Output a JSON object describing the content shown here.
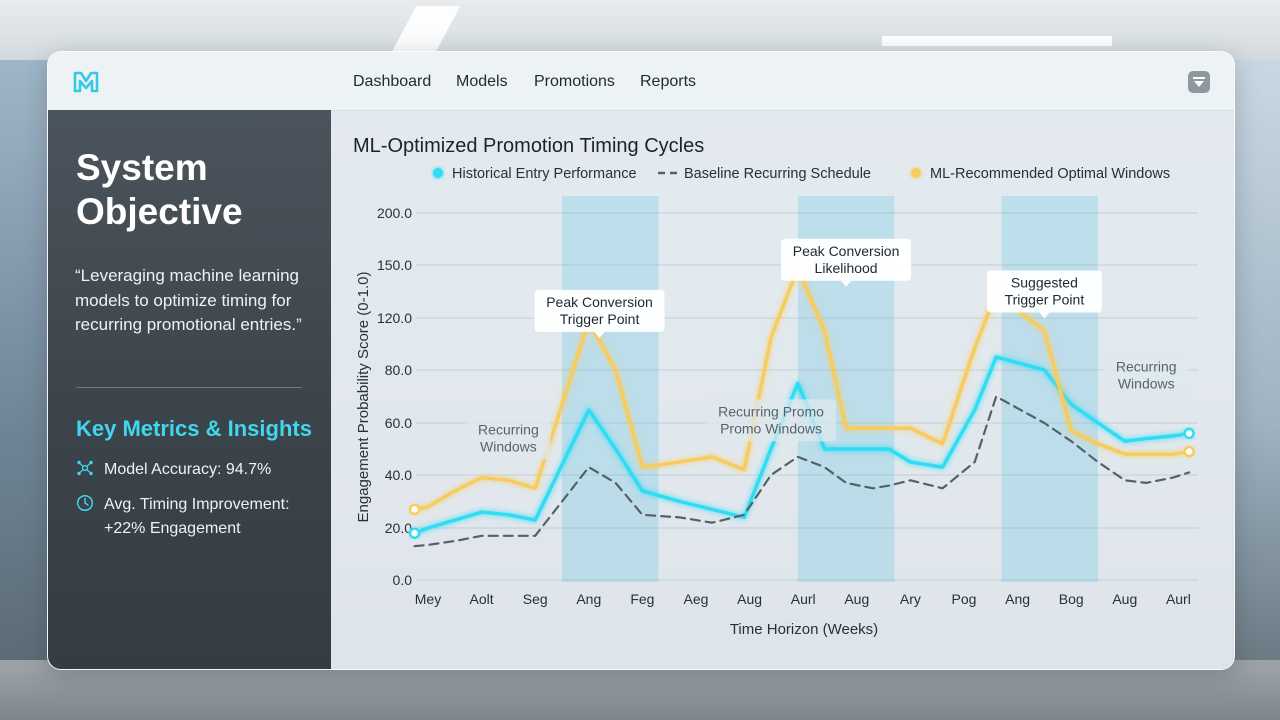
{
  "nav": {
    "items": [
      "Dashboard",
      "Models",
      "Promotions",
      "Reports"
    ]
  },
  "sidebar": {
    "title": "System Objective",
    "quote": "“Leveraging machine learning models to optimize timing for recurring promotional entries.”",
    "metrics_title": "Key Metrics & Insights",
    "metrics": [
      {
        "icon": "network-icon",
        "text": "Model Accuracy: 94.7%"
      },
      {
        "icon": "clock-icon",
        "text": "Avg. Timing Improvement: +22% Engagement"
      }
    ]
  },
  "colors": {
    "accent": "#3fd6ee",
    "historical": "#2fdcf3",
    "baseline": "#55606a",
    "ml": "#f7cc5e",
    "band": "#9fd3e8"
  },
  "chart_data": {
    "type": "line",
    "title": "ML-Optimized Promotion Timing Cycles",
    "xlabel": "Time Horizon (Weeks)",
    "ylabel": "Engagement Probability Score (0-1.0)",
    "categories": [
      "Mey",
      "Aolt",
      "Seg",
      "Ang",
      "Feg",
      "Aeg",
      "Aug",
      "Aurl",
      "Aug",
      "Ary",
      "Pog",
      "Ang",
      "Bog",
      "Aug",
      "Aurl"
    ],
    "y_ticks": [
      "200.0",
      "150.0",
      "120.0",
      "80.0",
      "60.0",
      "40.0",
      "20.0",
      "0.0"
    ],
    "grid": true,
    "legend_position": "top",
    "series": [
      {
        "name": "Historical Entry Performance",
        "style": "solid",
        "x": [
          -0.25,
          0.0,
          0.5,
          1.0,
          1.5,
          2.0,
          3.0,
          3.5,
          4.0,
          4.7,
          5.3,
          5.9,
          6.4,
          6.9,
          7.4,
          7.8,
          8.6,
          9.0,
          9.6,
          10.2,
          10.6,
          11.5,
          12.0,
          12.5,
          13.0,
          13.4,
          13.9,
          14.2
        ],
        "y": [
          18,
          20,
          23,
          26,
          25,
          23,
          65,
          50,
          34,
          30,
          27,
          24,
          50,
          75,
          50,
          50,
          50,
          45,
          43,
          65,
          90,
          80,
          67,
          60,
          53,
          54,
          55,
          56
        ]
      },
      {
        "name": "Baseline Recurring Schedule",
        "style": "dashed",
        "x": [
          -0.25,
          0.0,
          0.5,
          1.0,
          1.5,
          2.0,
          2.5,
          3.0,
          3.5,
          4.0,
          4.7,
          5.3,
          5.9,
          6.4,
          6.9,
          7.4,
          7.8,
          8.3,
          8.6,
          9.0,
          9.6,
          10.2,
          10.6,
          11.5,
          12.0,
          12.5,
          13.0,
          13.4,
          13.9,
          14.2
        ],
        "y": [
          13,
          13.5,
          15,
          17,
          17,
          17,
          30,
          43,
          37,
          25,
          24,
          22,
          25,
          40,
          47,
          43,
          37,
          35,
          36,
          38,
          35,
          45,
          70,
          60,
          53,
          45,
          38,
          37,
          39,
          41
        ]
      },
      {
        "name": "ML-Recommended Optimal Windows",
        "style": "solid",
        "x": [
          -0.25,
          0.0,
          0.5,
          1.0,
          1.5,
          2.0,
          3.0,
          3.5,
          4.0,
          4.7,
          5.3,
          5.9,
          6.4,
          6.9,
          7.4,
          7.8,
          8.6,
          9.0,
          9.6,
          10.2,
          10.6,
          11.5,
          12.0,
          12.5,
          13.0,
          13.4,
          13.9,
          14.2
        ],
        "y": [
          27,
          28,
          34,
          39,
          38,
          35,
          118,
          80,
          43,
          45,
          47,
          42,
          105,
          148,
          110,
          58,
          58,
          58,
          52,
          97,
          134,
          110,
          57,
          52,
          48,
          48,
          48,
          49
        ]
      }
    ],
    "markers": [
      {
        "series": 0,
        "x": -0.25,
        "y": 18
      },
      {
        "series": 2,
        "x": -0.25,
        "y": 27
      },
      {
        "series": 2,
        "x": 3.0,
        "y": 118
      },
      {
        "series": 2,
        "x": 6.9,
        "y": 148
      },
      {
        "series": 2,
        "x": 10.6,
        "y": 134
      },
      {
        "series": 0,
        "x": 14.2,
        "y": 56
      },
      {
        "series": 2,
        "x": 14.2,
        "y": 49
      }
    ],
    "highlight_bands": [
      [
        2.5,
        4.3
      ],
      [
        6.9,
        8.7
      ],
      [
        10.7,
        12.5
      ]
    ],
    "annotations": [
      {
        "text": "Recurring Windows",
        "x": 1.5,
        "y": 54,
        "style": "plain"
      },
      {
        "text": "Peak Conversion Trigger Point",
        "x": 3.2,
        "y": 124,
        "style": "boxed"
      },
      {
        "text": "Recurring Promo Promo Windows",
        "x": 6.4,
        "y": 61,
        "style": "plain"
      },
      {
        "text": "Peak Conversion Likelihood",
        "x": 7.8,
        "y": 155,
        "style": "boxed"
      },
      {
        "text": "Suggested Trigger Point",
        "x": 11.5,
        "y": 135,
        "style": "boxed"
      },
      {
        "text": "Recurring Windows",
        "x": 13.4,
        "y": 78,
        "style": "plain"
      }
    ]
  }
}
